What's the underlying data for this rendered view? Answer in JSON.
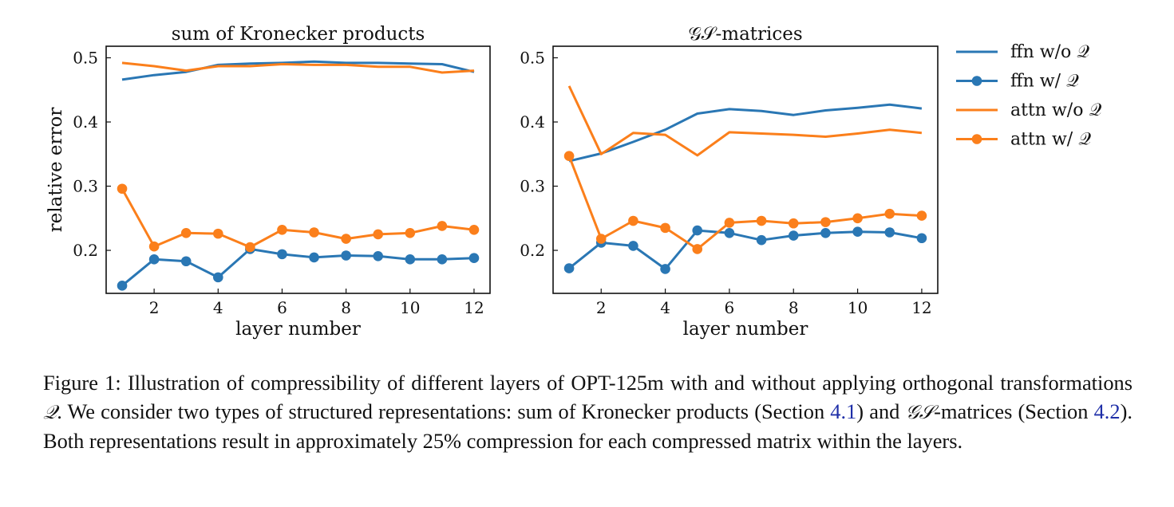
{
  "chart_data": [
    {
      "type": "line",
      "title": "sum of Kronecker products",
      "xlabel": "layer number",
      "ylabel": "relative error",
      "x": [
        1,
        2,
        3,
        4,
        5,
        6,
        7,
        8,
        9,
        10,
        11,
        12
      ],
      "xticks": [
        2,
        4,
        6,
        8,
        10,
        12
      ],
      "xlim": [
        0.5,
        12.5
      ],
      "ylim": [
        0.133,
        0.518
      ],
      "yticks": [
        0.2,
        0.3,
        0.4,
        0.5
      ],
      "grid": false,
      "series": [
        {
          "name": "ffn w/o 𝒬",
          "color": "#2a77b4",
          "markers": false,
          "values": [
            0.466,
            0.473,
            0.478,
            0.489,
            0.491,
            0.492,
            0.494,
            0.492,
            0.492,
            0.491,
            0.49,
            0.478
          ]
        },
        {
          "name": "ffn w/ 𝒬",
          "color": "#2a77b4",
          "markers": true,
          "values": [
            0.145,
            0.186,
            0.183,
            0.158,
            0.202,
            0.194,
            0.189,
            0.192,
            0.191,
            0.186,
            0.186,
            0.188
          ]
        },
        {
          "name": "attn w/o 𝒬",
          "color": "#fb7f1b",
          "markers": false,
          "values": [
            0.492,
            0.487,
            0.48,
            0.487,
            0.487,
            0.49,
            0.489,
            0.489,
            0.486,
            0.486,
            0.477,
            0.48
          ]
        },
        {
          "name": "attn w/ 𝒬",
          "color": "#fb7f1b",
          "markers": true,
          "values": [
            0.296,
            0.206,
            0.227,
            0.226,
            0.205,
            0.232,
            0.228,
            0.218,
            0.225,
            0.227,
            0.238,
            0.232
          ]
        }
      ]
    },
    {
      "type": "line",
      "title": "𝒢𝒮-matrices",
      "xlabel": "layer number",
      "ylabel": "",
      "x": [
        1,
        2,
        3,
        4,
        5,
        6,
        7,
        8,
        9,
        10,
        11,
        12
      ],
      "xticks": [
        2,
        4,
        6,
        8,
        10,
        12
      ],
      "xlim": [
        0.5,
        12.5
      ],
      "ylim": [
        0.133,
        0.518
      ],
      "yticks": [
        0.2,
        0.3,
        0.4,
        0.5
      ],
      "grid": false,
      "series": [
        {
          "name": "ffn w/o 𝒬",
          "color": "#2a77b4",
          "markers": false,
          "values": [
            0.339,
            0.351,
            0.369,
            0.388,
            0.413,
            0.42,
            0.417,
            0.411,
            0.418,
            0.422,
            0.427,
            0.421
          ]
        },
        {
          "name": "ffn w/ 𝒬",
          "color": "#2a77b4",
          "markers": true,
          "values": [
            0.172,
            0.212,
            0.207,
            0.171,
            0.231,
            0.227,
            0.216,
            0.223,
            0.227,
            0.229,
            0.228,
            0.219
          ]
        },
        {
          "name": "attn w/o 𝒬",
          "color": "#fb7f1b",
          "markers": false,
          "values": [
            0.456,
            0.35,
            0.383,
            0.38,
            0.348,
            0.384,
            0.382,
            0.38,
            0.377,
            0.382,
            0.388,
            0.383
          ]
        },
        {
          "name": "attn w/ 𝒬",
          "color": "#fb7f1b",
          "markers": true,
          "values": [
            0.347,
            0.218,
            0.246,
            0.235,
            0.202,
            0.243,
            0.246,
            0.242,
            0.244,
            0.25,
            0.257,
            0.254
          ]
        }
      ]
    }
  ],
  "legend": {
    "placement": "right",
    "entries": [
      {
        "label": "ffn w/o 𝒬",
        "color": "#2a77b4",
        "marker": false
      },
      {
        "label": "ffn w/ 𝒬",
        "color": "#2a77b4",
        "marker": true
      },
      {
        "label": "attn w/o 𝒬",
        "color": "#fb7f1b",
        "marker": false
      },
      {
        "label": "attn w/ 𝒬",
        "color": "#fb7f1b",
        "marker": true
      }
    ]
  },
  "caption": {
    "part1": "Figure 1: Illustration of compressibility of different layers of OPT-125m with and without applying orthogonal transformations ",
    "sym_q": "𝒬",
    "part2": ". We consider two types of structured representations: sum of Kronecker products (Section ",
    "ref1": "4.1",
    "part3": ") and ",
    "sym_gs": "𝒢𝒮",
    "part4": "-matrices (Section ",
    "ref2": "4.2",
    "part5": "). Both representations result in approximately 25% compression for each compressed matrix within the layers."
  }
}
